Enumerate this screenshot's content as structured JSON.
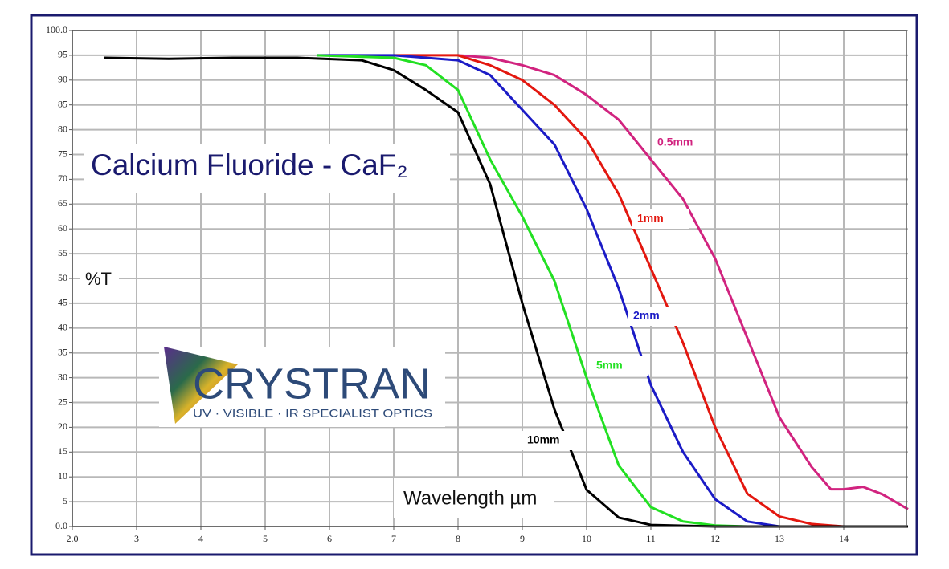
{
  "chart_data": {
    "type": "line",
    "title": "Calcium Fluoride - CaF₂",
    "x_label": "Wavelength µm",
    "y_label": "%T",
    "logo": {
      "name": "CRYSTRAN",
      "tagline": "UV · VISIBLE · IR SPECIALIST OPTICS"
    },
    "xlim": [
      2,
      15
    ],
    "ylim": [
      0,
      100
    ],
    "xticks": [
      {
        "value": 2,
        "label": "2.0"
      },
      3,
      4,
      5,
      6,
      7,
      8,
      9,
      10,
      11,
      12,
      13,
      14
    ],
    "yticks": [
      {
        "value": 0,
        "label": "0.0"
      },
      5,
      10,
      15,
      20,
      25,
      30,
      35,
      40,
      45,
      50,
      55,
      60,
      65,
      70,
      75,
      80,
      85,
      90,
      95,
      {
        "value": 100,
        "label": "100.0"
      }
    ],
    "grid": true,
    "series": [
      {
        "name": "0.5mm",
        "color": "#d1237f",
        "x": [
          8,
          8.5,
          9,
          9.5,
          10,
          10.5,
          11,
          11.5,
          12,
          12.5,
          13,
          13.5,
          13.8,
          14,
          14.3,
          14.6,
          15
        ],
        "values": [
          95,
          94.5,
          93,
          91,
          87,
          82,
          74,
          66,
          54,
          38,
          22,
          12,
          7.5,
          7.5,
          8,
          6.5,
          3.5
        ]
      },
      {
        "name": "1mm",
        "color": "#e3170f",
        "x": [
          7,
          8,
          8.5,
          9,
          9.5,
          10,
          10.5,
          11,
          11.5,
          12,
          12.5,
          13,
          13.5,
          14,
          15
        ],
        "values": [
          95,
          95,
          93,
          90,
          85,
          78,
          67,
          52,
          37,
          20,
          6.6,
          2,
          0.5,
          0,
          0
        ]
      },
      {
        "name": "2mm",
        "color": "#1b1bc6",
        "x": [
          5.8,
          7,
          8,
          8.5,
          9,
          9.5,
          10,
          10.5,
          11,
          11.5,
          12,
          12.5,
          13
        ],
        "values": [
          95,
          95,
          94,
          91,
          84,
          77,
          64,
          48,
          28.5,
          15,
          5.5,
          1,
          0
        ]
      },
      {
        "name": "5mm",
        "color": "#22e022",
        "x": [
          5.8,
          7,
          7.5,
          8,
          8.5,
          9,
          9.5,
          10,
          10.5,
          11,
          11.5,
          12,
          12.5
        ],
        "values": [
          95,
          94.5,
          93,
          88,
          74,
          62.5,
          49.5,
          30,
          12.3,
          3.9,
          1,
          0.2,
          0
        ]
      },
      {
        "name": "10mm",
        "color": "#000000",
        "x": [
          2.5,
          3.5,
          4.5,
          5.5,
          6.5,
          7,
          7.5,
          8,
          8.5,
          9,
          9.5,
          10,
          10.5,
          11,
          12,
          13,
          14,
          15
        ],
        "values": [
          94.5,
          94.3,
          94.5,
          94.5,
          94,
          92,
          88,
          83.5,
          69,
          45,
          23.6,
          7.4,
          1.8,
          0.3,
          0,
          0,
          0,
          0
        ]
      }
    ]
  }
}
